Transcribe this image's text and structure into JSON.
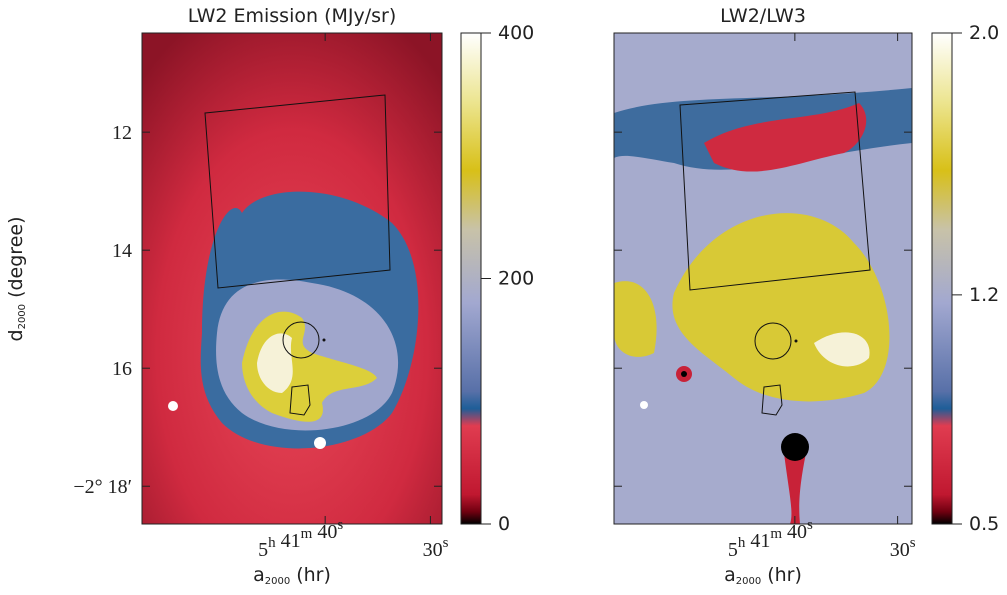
{
  "panels": [
    {
      "title": "LW2 Emission (MJy/sr)",
      "xaxis": {
        "lim": [
          57.4,
          28.9
        ],
        "ticks": [
          {
            "value": 40,
            "label": [
              {
                "text": "5",
                "sup": "h"
              },
              {
                "text": " 41",
                "sup": "m"
              },
              {
                "text": " 40",
                "sup": "s"
              }
            ]
          },
          {
            "value": 30,
            "label": [
              {
                "text": "30",
                "sup": "s"
              }
            ]
          }
        ],
        "title": {
          "symbol": "a",
          "sub": "2000",
          "unit": " (hr)"
        }
      },
      "yaxis": {
        "lim": [
          10.32,
          18.64
        ],
        "ticks": [
          12,
          14,
          16,
          {
            "value": 18,
            "label": "−2° 18′"
          }
        ],
        "title": {
          "symbol": "d",
          "sub": "2000",
          "unit": " (degree)"
        }
      },
      "colorbar": {
        "lim": [
          0,
          400
        ],
        "ticks": [
          {
            "value": 0,
            "label": "0"
          },
          {
            "value": 200,
            "label": "200"
          },
          {
            "value": 400,
            "label": "400"
          }
        ]
      }
    },
    {
      "title": "LW2/LW3",
      "xaxis": {
        "lim": [
          57.6,
          28.6
        ],
        "ticks": [
          {
            "value": 40,
            "label": [
              {
                "text": "5",
                "sup": "h"
              },
              {
                "text": " 41",
                "sup": "m"
              },
              {
                "text": " 40",
                "sup": "s"
              }
            ]
          },
          {
            "value": 30,
            "label": [
              {
                "text": "30",
                "sup": "s"
              }
            ]
          }
        ],
        "title": {
          "symbol": "a",
          "sub": "2000",
          "unit": " (hr)"
        }
      },
      "colorbar": {
        "lim": [
          0.5,
          2.0
        ],
        "ticks": [
          {
            "value": 0.5,
            "label": "0.5"
          },
          {
            "value": 1.2,
            "label": "1.2"
          },
          {
            "value": 2.0,
            "label": "2.0"
          }
        ]
      }
    }
  ]
}
